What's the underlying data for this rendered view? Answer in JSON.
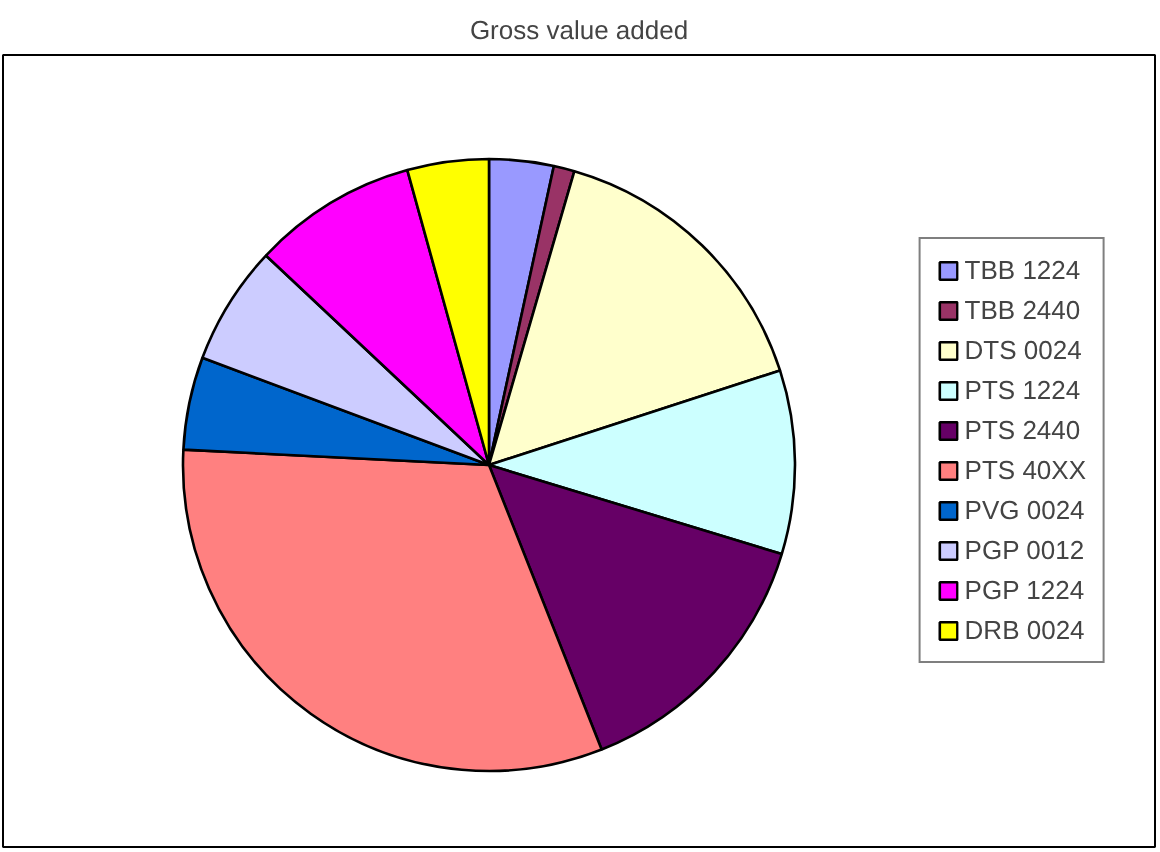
{
  "chart_data": {
    "type": "pie",
    "title": "Gross value added",
    "categories": [
      "TBB 1224",
      "TBB 2440",
      "DTS 0024",
      "PTS 1224",
      "PTS 2440",
      "PTS 40XX",
      "PVG 0024",
      "PGP 0012",
      "PGP 1224",
      "DRB 0024"
    ],
    "values": [
      3.4,
      1.1,
      15.5,
      9.7,
      14.3,
      31.8,
      4.9,
      6.3,
      8.7,
      4.3
    ],
    "colors": [
      "#9999ff",
      "#993366",
      "#ffffcc",
      "#ccffff",
      "#660066",
      "#ff8080",
      "#0066cc",
      "#ccccff",
      "#ff00ff",
      "#ffff00"
    ],
    "legend": "right"
  }
}
